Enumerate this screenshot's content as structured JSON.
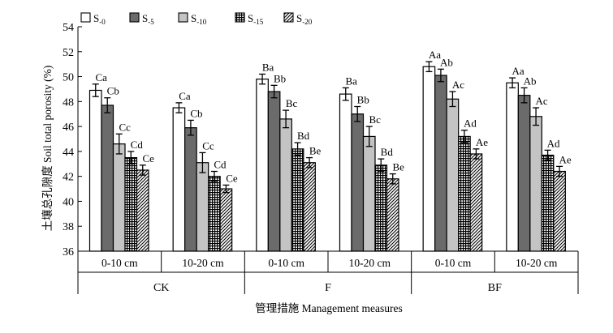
{
  "chart_data": {
    "type": "bar",
    "ylabel": "土壤总孔隙度 Soil total porosity (%)",
    "xlabel": "管理措施 Management measures",
    "ylim": [
      36,
      54
    ],
    "yticks": [
      "36",
      "38",
      "40",
      "42",
      "44",
      "46",
      "48",
      "50",
      "52",
      "54"
    ],
    "groups": [
      "CK",
      "F",
      "BF"
    ],
    "depths": [
      "0-10 cm",
      "10-20 cm"
    ],
    "series": [
      {
        "name": "S-0",
        "label_main": "S",
        "label_sub": "-0",
        "pattern": "solid-white"
      },
      {
        "name": "S-5",
        "label_main": "S",
        "label_sub": "-5",
        "pattern": "dark-grey"
      },
      {
        "name": "S-10",
        "label_main": "S",
        "label_sub": "-10",
        "pattern": "light-grey"
      },
      {
        "name": "S-15",
        "label_main": "S",
        "label_sub": "-15",
        "pattern": "grid"
      },
      {
        "name": "S-20",
        "label_main": "S",
        "label_sub": "-20",
        "pattern": "diagonal"
      }
    ],
    "clusters": [
      {
        "group": "CK",
        "depth": "0-10 cm",
        "values": [
          48.9,
          47.7,
          44.6,
          43.5,
          42.5
        ],
        "errors": [
          0.5,
          0.6,
          0.8,
          0.5,
          0.4
        ],
        "letters": [
          "Ca",
          "Cb",
          "Cc",
          "Cd",
          "Ce"
        ]
      },
      {
        "group": "CK",
        "depth": "10-20 cm",
        "values": [
          47.5,
          45.9,
          43.1,
          42.0,
          41.0
        ],
        "errors": [
          0.4,
          0.6,
          0.8,
          0.4,
          0.3
        ],
        "letters": [
          "Ca",
          "Cb",
          "Cc",
          "Cd",
          "Ce"
        ]
      },
      {
        "group": "F",
        "depth": "0-10 cm",
        "values": [
          49.8,
          48.8,
          46.6,
          44.2,
          43.1
        ],
        "errors": [
          0.4,
          0.5,
          0.7,
          0.5,
          0.4
        ],
        "letters": [
          "Ba",
          "Bb",
          "Bc",
          "Bd",
          "Be"
        ]
      },
      {
        "group": "F",
        "depth": "10-20 cm",
        "values": [
          48.6,
          47.0,
          45.2,
          42.9,
          41.8
        ],
        "errors": [
          0.5,
          0.6,
          0.8,
          0.5,
          0.4
        ],
        "letters": [
          "Ba",
          "Bb",
          "Bc",
          "Bd",
          "Be"
        ]
      },
      {
        "group": "BF",
        "depth": "0-10 cm",
        "values": [
          50.8,
          50.1,
          48.2,
          45.2,
          43.8
        ],
        "errors": [
          0.4,
          0.5,
          0.6,
          0.5,
          0.4
        ],
        "letters": [
          "Aa",
          "Ab",
          "Ac",
          "Ad",
          "Ae"
        ]
      },
      {
        "group": "BF",
        "depth": "10-20 cm",
        "values": [
          49.5,
          48.5,
          46.8,
          43.7,
          42.4
        ],
        "errors": [
          0.4,
          0.6,
          0.7,
          0.4,
          0.4
        ],
        "letters": [
          "Aa",
          "Ab",
          "Ac",
          "Ad",
          "Ae"
        ]
      }
    ]
  }
}
